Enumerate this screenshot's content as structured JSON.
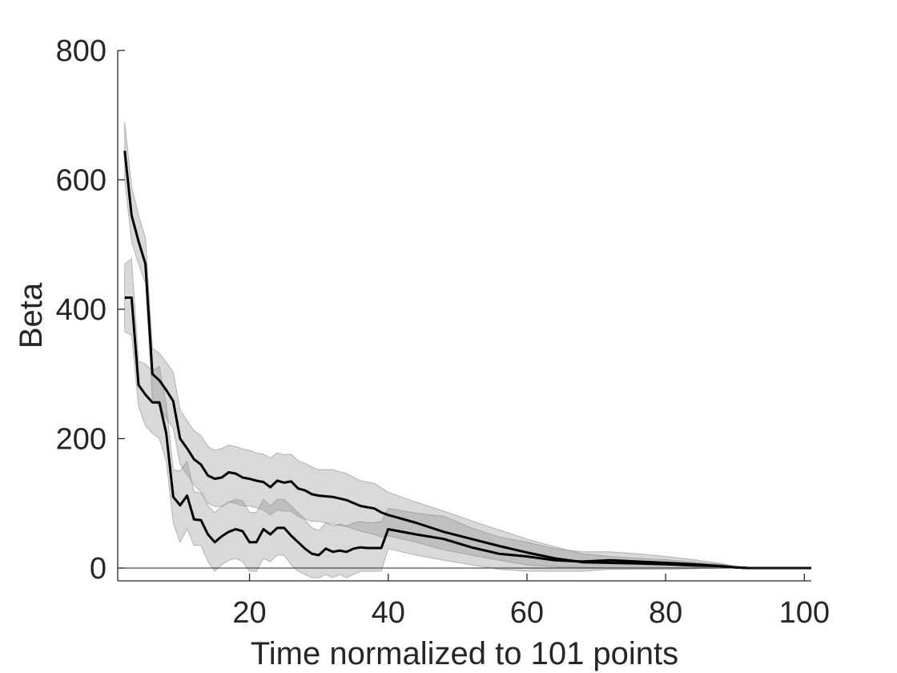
{
  "chart_data": {
    "type": "line",
    "title": "",
    "xlabel": "Time normalized to 101 points",
    "ylabel": "Beta",
    "xlim": [
      1,
      101
    ],
    "ylim": [
      -20,
      800
    ],
    "xticks": [
      20,
      40,
      60,
      80,
      100
    ],
    "yticks": [
      0,
      200,
      400,
      600,
      800
    ],
    "grid": false,
    "reference_line_y": 0,
    "colors": {
      "line": "#000000",
      "band": "#d9d9d9",
      "band_overlap": "#a6a6a6",
      "band_edge": "#8c8c8c",
      "axis": "#262626"
    },
    "series": [
      {
        "x": [
          2,
          3,
          4,
          5,
          6,
          7,
          8,
          9,
          10,
          11,
          12,
          13,
          14,
          15,
          16,
          17,
          18,
          19,
          20,
          21,
          22,
          23,
          24,
          25,
          26,
          27,
          28,
          29,
          30,
          32,
          34,
          36,
          38,
          39,
          40,
          44,
          48,
          52,
          56,
          60,
          64,
          68,
          72,
          76,
          80,
          84,
          88,
          90,
          92,
          95,
          98,
          101
        ],
        "values": [
          645,
          545,
          505,
          470,
          300,
          290,
          275,
          258,
          200,
          185,
          168,
          160,
          143,
          138,
          140,
          148,
          146,
          140,
          138,
          135,
          133,
          125,
          135,
          132,
          134,
          123,
          120,
          114,
          112,
          110,
          105,
          96,
          92,
          86,
          82,
          70,
          56,
          45,
          34,
          24,
          15,
          9,
          8,
          7,
          6,
          4,
          3,
          1,
          0,
          0,
          0,
          0
        ],
        "lower": [
          600,
          505,
          470,
          440,
          262,
          250,
          232,
          215,
          160,
          145,
          128,
          118,
          100,
          95,
          95,
          102,
          100,
          96,
          96,
          93,
          90,
          82,
          90,
          88,
          88,
          80,
          76,
          72,
          72,
          68,
          64,
          57,
          52,
          48,
          50,
          40,
          28,
          20,
          12,
          5,
          2,
          1,
          0,
          0,
          0,
          0,
          0,
          0,
          0,
          0,
          0,
          0
        ],
        "upper": [
          690,
          590,
          545,
          510,
          340,
          332,
          318,
          303,
          244,
          228,
          212,
          205,
          188,
          182,
          185,
          190,
          188,
          184,
          182,
          178,
          176,
          170,
          178,
          175,
          176,
          166,
          162,
          156,
          152,
          152,
          146,
          135,
          131,
          124,
          117,
          102,
          88,
          73,
          59,
          45,
          33,
          22,
          18,
          15,
          13,
          9,
          6,
          3,
          1,
          0,
          0,
          0
        ]
      },
      {
        "x": [
          2,
          3,
          4,
          5,
          6,
          7,
          8,
          9,
          10,
          11,
          12,
          13,
          14,
          15,
          16,
          17,
          18,
          19,
          20,
          21,
          22,
          23,
          24,
          25,
          26,
          27,
          28,
          29,
          30,
          31,
          32,
          33,
          34,
          35,
          36,
          37,
          38,
          39,
          40,
          44,
          48,
          52,
          56,
          60,
          64,
          68,
          72,
          76,
          80,
          84,
          88,
          90,
          92,
          95,
          98,
          101
        ],
        "values": [
          418,
          418,
          283,
          268,
          256,
          256,
          208,
          110,
          97,
          112,
          75,
          74,
          52,
          40,
          49,
          56,
          60,
          57,
          40,
          40,
          60,
          52,
          62,
          62,
          50,
          40,
          30,
          22,
          20,
          30,
          25,
          27,
          25,
          30,
          32,
          31,
          31,
          31,
          60,
          52,
          45,
          32,
          22,
          18,
          12,
          10,
          12,
          10,
          8,
          6,
          3,
          1,
          0,
          0,
          0,
          0
        ],
        "lower": [
          365,
          360,
          250,
          220,
          208,
          200,
          165,
          70,
          40,
          60,
          35,
          35,
          10,
          -5,
          5,
          12,
          15,
          10,
          -5,
          -5,
          15,
          10,
          20,
          20,
          5,
          -5,
          -10,
          -15,
          -15,
          -10,
          -15,
          -10,
          -15,
          -10,
          -5,
          -5,
          -5,
          -5,
          30,
          20,
          12,
          5,
          -2,
          -5,
          -5,
          -5,
          -2,
          -2,
          -2,
          -1,
          0,
          0,
          0,
          0,
          0,
          0
        ],
        "upper": [
          470,
          478,
          320,
          315,
          305,
          312,
          252,
          152,
          150,
          165,
          118,
          116,
          96,
          86,
          95,
          102,
          106,
          104,
          86,
          86,
          106,
          96,
          106,
          106,
          96,
          86,
          75,
          62,
          58,
          70,
          65,
          68,
          65,
          70,
          72,
          70,
          70,
          72,
          92,
          85,
          80,
          62,
          48,
          40,
          30,
          25,
          25,
          22,
          18,
          13,
          7,
          3,
          1,
          0,
          0,
          0
        ]
      }
    ]
  }
}
